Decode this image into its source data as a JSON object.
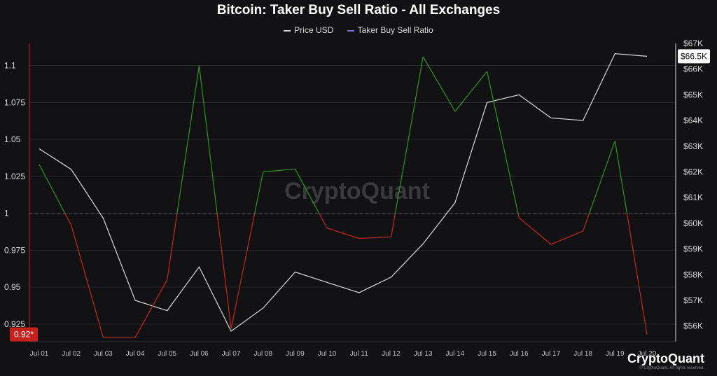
{
  "title": "Bitcoin: Taker Buy Sell Ratio - All Exchanges",
  "legend": [
    {
      "label": "Price USD",
      "color": "#d9d9d9"
    },
    {
      "label": "Taker Buy Sell Ratio",
      "color": "#7b7bd6"
    }
  ],
  "watermark": "CryptoQuant",
  "brand": {
    "name": "CryptoQuant",
    "copyright": "© CryptoQuant. All rights reserved."
  },
  "colors": {
    "above": "#2e8b22",
    "below": "#b8281e",
    "price": "#d9d9d9",
    "grid": "#2a2a2e",
    "background": "#121214"
  },
  "chart_data": {
    "type": "line",
    "title": "Bitcoin: Taker Buy Sell Ratio - All Exchanges",
    "categories": [
      "Jul 01",
      "Jul 02",
      "Jul 03",
      "Jul 04",
      "Jul 05",
      "Jul 06",
      "Jul 07",
      "Jul 08",
      "Jul 09",
      "Jul 10",
      "Jul 11",
      "Jul 12",
      "Jul 13",
      "Jul 14",
      "Jul 15",
      "Jul 16",
      "Jul 17",
      "Jul 18",
      "Jul 19",
      "Jul 20"
    ],
    "series": [
      {
        "name": "Taker Buy Sell Ratio",
        "axis": "left",
        "values": [
          1.033,
          0.992,
          0.916,
          0.916,
          0.955,
          1.1,
          0.922,
          1.028,
          1.03,
          0.99,
          0.983,
          0.984,
          1.106,
          1.069,
          1.096,
          0.997,
          0.979,
          0.988,
          1.049,
          0.918
        ]
      },
      {
        "name": "Price USD",
        "axis": "right",
        "values": [
          62900,
          62100,
          60200,
          57000,
          56600,
          58300,
          55800,
          56700,
          58100,
          57700,
          57300,
          57900,
          59200,
          60800,
          64700,
          65000,
          64100,
          64000,
          66600,
          66500
        ]
      }
    ],
    "left_axis": {
      "ylim": [
        0.915,
        1.115
      ],
      "ticks": [
        "1.1",
        "1.075",
        "1.05",
        "1.025",
        "1",
        "0.975",
        "0.95",
        "0.925"
      ],
      "ref_line": 1,
      "current_label": "0.92*"
    },
    "right_axis": {
      "ylim": [
        55500,
        67000
      ],
      "ticks": [
        "$67K",
        "$66K",
        "$65K",
        "$64K",
        "$63K",
        "$62K",
        "$61K",
        "$60K",
        "$59K",
        "$58K",
        "$57K",
        "$56K"
      ],
      "current_label": "$66.5K"
    },
    "grid": true,
    "legend_position": "top-center"
  }
}
